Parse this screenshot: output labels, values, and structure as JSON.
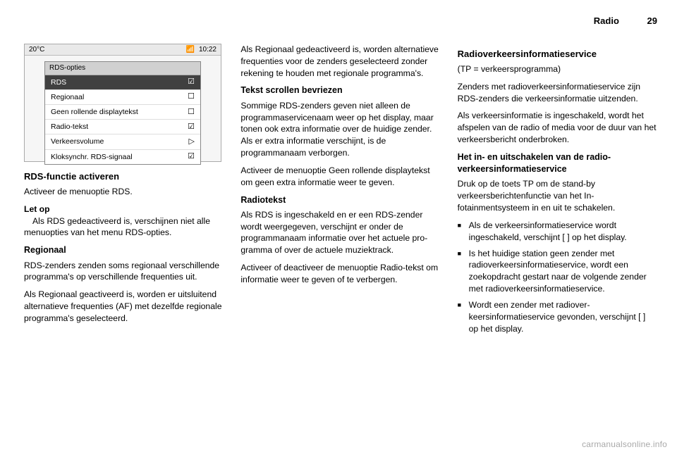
{
  "header": {
    "section": "Radio",
    "page_number": "29"
  },
  "screenshot": {
    "temperature": "20°C",
    "time": "10:22",
    "panel_title": "RDS-opties",
    "rows": [
      {
        "label": "RDS",
        "glyph": "☑",
        "active": true
      },
      {
        "label": "Regionaal",
        "glyph": "☐",
        "active": false
      },
      {
        "label": "Geen rollende displaytekst",
        "glyph": "☐",
        "active": false
      },
      {
        "label": "Radio-tekst",
        "glyph": "☑",
        "active": false
      },
      {
        "label": "Verkeersvolume",
        "glyph": "▷",
        "active": false
      },
      {
        "label": "Kloksynchr. RDS-signaal",
        "glyph": "☑",
        "active": false
      }
    ]
  },
  "col1": {
    "h_activate": "RDS-functie activeren",
    "p_activate": "Activeer de menuoptie RDS.",
    "note_label": "Let op",
    "note_body": "Als RDS gedeactiveerd is, verschij­nen niet alle menuopties van het menu RDS-opties.",
    "h_regional": "Regionaal",
    "p_regional1": "RDS-zenders zenden soms regionaal verschillende programma's op ver­schillende frequenties uit.",
    "p_regional2": "Als Regionaal geactiveerd is, worden er uitsluitend alternatieve frequenties (AF) met dezelfde regionale program­ma's geselecteerd."
  },
  "col2": {
    "p_regional3": "Als Regionaal gedeactiveerd is, wor­den alternatieve frequenties voor de zenders geselecteerd zonder reke­ning te houden met regionale pro­gramma's.",
    "h_scroll": "Tekst scrollen bevriezen",
    "p_scroll1": "Sommige RDS-zenders geven niet alleen de programmaservicenaam weer op het display, maar tonen ook extra informatie over de huidige zen­der. Als er extra informatie verschijnt, is de programmanaam verborgen.",
    "p_scroll2": "Activeer de menuoptie Geen rollende displaytekst om geen extra informatie weer te geven.",
    "h_radiotext": "Radiotekst",
    "p_radiotext1": "Als RDS is ingeschakeld en er een RDS-zender wordt weergegeven, verschijnt er onder de programma­naam informatie over het actuele pro­gramma of over de actuele muziek­track.",
    "p_radiotext2": "Activeer of deactiveer de menuoptie Radio-tekst om informatie weer te ge­ven of te verbergen."
  },
  "col3": {
    "h_traffic": "Radioverkeersinformatieservice",
    "p_tp": "(TP = verkeersprogramma)",
    "p_traffic1": "Zenders met radioverkeersinformatie­service zijn RDS-zenders die ver­keersinformatie uitzenden.",
    "p_traffic2": "Als verkeersinformatie is ingescha­keld, wordt het afspelen van de radio of media voor de duur van het ver­keersbericht onderbroken.",
    "h_traffic_onoff": "Het in- en uitschakelen van de radio­verkeersinformatieservice",
    "p_traffic3": "Druk op de toets TP om de stand-by verkeersberichtenfunctie van het In­fotainmentsysteem in en uit te scha­kelen.",
    "bullets": [
      "Als de verkeersinformatieservice wordt ingeschakeld, verschijnt [ ] op het display.",
      "Is het huidige station geen zender met radioverkeersinformatieservice, wordt een zoekopdracht gestart naar de volgende zender met radi­overkeersinformatieservice.",
      "Wordt een zender met radiover­keersinformatieservice gevonden, verschijnt [ ] op het display."
    ]
  },
  "watermark": "carmanualsonline.info"
}
